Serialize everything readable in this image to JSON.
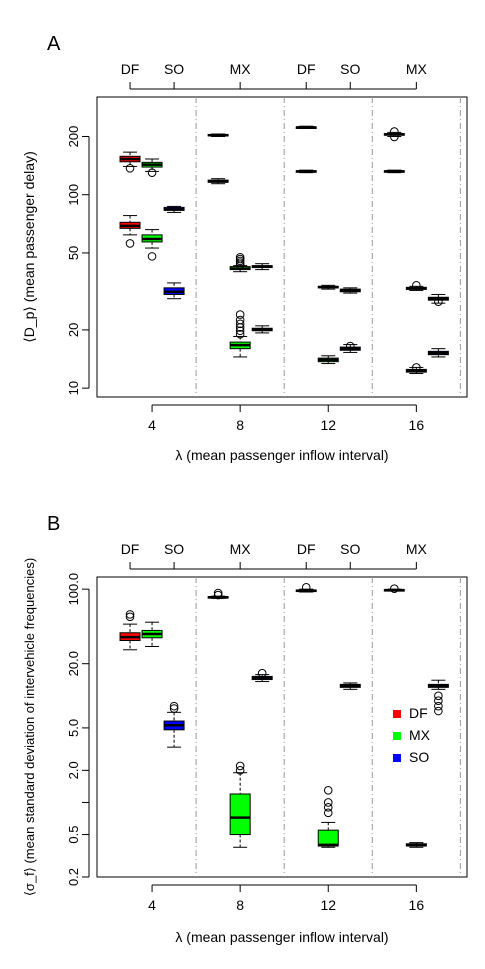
{
  "chart_data": [
    {
      "type": "box",
      "panel_label": "A",
      "ylabel": "⟨D_p⟩ (mean passenger delay)",
      "xlabel": "λ (mean passenger inflow interval)",
      "y_scale": "log",
      "ylim": [
        9,
        320
      ],
      "y_ticks": [
        10,
        20,
        50,
        100,
        200
      ],
      "y_tick_labels": [
        "10",
        "20",
        "50",
        "100",
        "200"
      ],
      "x_ticks": [
        4,
        8,
        12,
        16
      ],
      "x_tick_labels": [
        "4",
        "8",
        "12",
        "16"
      ],
      "top_labels": [
        "DF",
        "SO",
        "MX",
        "DF",
        "SO",
        "MX"
      ],
      "separators": [
        6,
        10,
        14,
        18
      ],
      "boxes": [
        {
          "x": 3.0,
          "series": "DF",
          "fill": "#ff0000",
          "whislo": 140,
          "q1": 148,
          "med": 153,
          "q3": 158,
          "whishi": 166,
          "outliers": [
            137
          ]
        },
        {
          "x": 3.0,
          "series": "DF",
          "fill": "#ff0000",
          "whislo": 62,
          "q1": 67,
          "med": 69,
          "q3": 72,
          "whishi": 78,
          "outliers": [
            56
          ]
        },
        {
          "x": 4.0,
          "series": "MX",
          "fill": "#00ff00",
          "whislo": 132,
          "q1": 139,
          "med": 143,
          "q3": 147,
          "whishi": 153,
          "outliers": [
            130
          ]
        },
        {
          "x": 4.0,
          "series": "MX",
          "fill": "#00ff00",
          "whislo": 53,
          "q1": 57,
          "med": 59,
          "q3": 62,
          "whishi": 66,
          "outliers": [
            48
          ]
        },
        {
          "x": 5.0,
          "series": "SO",
          "fill": "#0000ff",
          "whislo": 81,
          "q1": 83,
          "med": 84,
          "q3": 86,
          "whishi": 87,
          "outliers": []
        },
        {
          "x": 5.0,
          "series": "SO",
          "fill": "#0000ff",
          "whislo": 29,
          "q1": 30.5,
          "med": 31.5,
          "q3": 33,
          "whishi": 35,
          "outliers": []
        },
        {
          "x": 7.0,
          "series": "DF",
          "fill": "#ff0000",
          "whislo": 200,
          "q1": 202,
          "med": 203,
          "q3": 205,
          "whishi": 206,
          "outliers": []
        },
        {
          "x": 7.0,
          "series": "DF",
          "fill": "#ff0000",
          "whislo": 114,
          "q1": 116,
          "med": 117,
          "q3": 119,
          "whishi": 121,
          "outliers": []
        },
        {
          "x": 8.0,
          "series": "MX",
          "fill": "#00ff00",
          "whislo": 40,
          "q1": 41,
          "med": 41.5,
          "q3": 42.5,
          "whishi": 43,
          "outliers": [
            43.5,
            44.5,
            45.5,
            46.5,
            47.5
          ]
        },
        {
          "x": 8.0,
          "series": "MX",
          "fill": "#00ff00",
          "whislo": 14.5,
          "q1": 16,
          "med": 16.7,
          "q3": 17.3,
          "whishi": 18.5,
          "outliers": [
            19,
            19.8,
            20.6,
            21.5,
            22.5,
            24
          ]
        },
        {
          "x": 9.0,
          "series": "SO",
          "fill": "#0000ff",
          "whislo": 41,
          "q1": 42,
          "med": 42.5,
          "q3": 43,
          "whishi": 44,
          "outliers": []
        },
        {
          "x": 9.0,
          "series": "SO",
          "fill": "#0000ff",
          "whislo": 19.3,
          "q1": 19.8,
          "med": 20.1,
          "q3": 20.4,
          "whishi": 21,
          "outliers": []
        },
        {
          "x": 11.0,
          "series": "DF",
          "fill": "#ff0000",
          "whislo": 220,
          "q1": 222,
          "med": 223,
          "q3": 224,
          "whishi": 226,
          "outliers": []
        },
        {
          "x": 11.0,
          "series": "DF",
          "fill": "#ff0000",
          "whislo": 130,
          "q1": 131,
          "med": 132,
          "q3": 133,
          "whishi": 134,
          "outliers": []
        },
        {
          "x": 12.0,
          "series": "MX",
          "fill": "#00ff00",
          "whislo": 32.5,
          "q1": 33,
          "med": 33.3,
          "q3": 33.6,
          "whishi": 34,
          "outliers": []
        },
        {
          "x": 12.0,
          "series": "MX",
          "fill": "#00ff00",
          "whislo": 13.4,
          "q1": 13.7,
          "med": 14,
          "q3": 14.3,
          "whishi": 14.7,
          "outliers": []
        },
        {
          "x": 13.0,
          "series": "SO",
          "fill": "#0000ff",
          "whislo": 31,
          "q1": 31.5,
          "med": 32,
          "q3": 32.5,
          "whishi": 33,
          "outliers": []
        },
        {
          "x": 13.0,
          "series": "SO",
          "fill": "#0000ff",
          "whislo": 15.3,
          "q1": 15.7,
          "med": 16,
          "q3": 16.3,
          "whishi": 16.8,
          "outliers": [
            16.5
          ]
        },
        {
          "x": 15.0,
          "series": "DF",
          "fill": "#ff0000",
          "whislo": 200,
          "q1": 203,
          "med": 205,
          "q3": 207,
          "whishi": 210,
          "outliers": [
            199,
            212
          ]
        },
        {
          "x": 15.0,
          "series": "DF",
          "fill": "#ff0000",
          "whislo": 130,
          "q1": 131,
          "med": 132,
          "q3": 133,
          "whishi": 134,
          "outliers": []
        },
        {
          "x": 16.0,
          "series": "MX",
          "fill": "#00ff00",
          "whislo": 32,
          "q1": 32.4,
          "med": 32.8,
          "q3": 33.2,
          "whishi": 33.6,
          "outliers": [
            34
          ]
        },
        {
          "x": 16.0,
          "series": "MX",
          "fill": "#00ff00",
          "whislo": 11.9,
          "q1": 12.1,
          "med": 12.3,
          "q3": 12.5,
          "whishi": 12.8,
          "outliers": [
            12.8
          ]
        },
        {
          "x": 17.0,
          "series": "SO",
          "fill": "#0000ff",
          "whislo": 27.5,
          "q1": 28.5,
          "med": 29,
          "q3": 29.5,
          "whishi": 30.5,
          "outliers": [
            28
          ]
        },
        {
          "x": 17.0,
          "series": "SO",
          "fill": "#0000ff",
          "whislo": 14.5,
          "q1": 14.9,
          "med": 15.2,
          "q3": 15.5,
          "whishi": 16,
          "outliers": []
        }
      ]
    },
    {
      "type": "box",
      "panel_label": "B",
      "ylabel": "⟨σ_f⟩ (mean standard deviation of intervehicle frequencies)",
      "xlabel": "λ (mean passenger inflow interval)",
      "y_scale": "log",
      "ylim": [
        0.2,
        130
      ],
      "y_ticks": [
        0.2,
        0.5,
        1.0,
        2.0,
        5.0,
        20.0,
        100.0
      ],
      "y_tick_labels": [
        "0.2",
        "0.5",
        "",
        "2.0",
        "5.0",
        "20.0",
        "100.0"
      ],
      "x_ticks": [
        4,
        8,
        12,
        16
      ],
      "x_tick_labels": [
        "4",
        "8",
        "12",
        "16"
      ],
      "top_labels": [
        "DF",
        "SO",
        "MX",
        "DF",
        "SO",
        "MX"
      ],
      "separators": [
        6,
        10,
        14,
        18
      ],
      "legend": {
        "position": "right",
        "entries": [
          {
            "label": "DF",
            "color": "#ff0000"
          },
          {
            "label": "MX",
            "color": "#00ff00"
          },
          {
            "label": "SO",
            "color": "#0000ff"
          }
        ]
      },
      "boxes": [
        {
          "x": 3.0,
          "series": "DF",
          "fill": "#ff0000",
          "whislo": 27,
          "q1": 33,
          "med": 35.5,
          "q3": 39,
          "whishi": 47,
          "outliers": [
            55,
            58
          ]
        },
        {
          "x": 4.0,
          "series": "MX",
          "fill": "#00ff00",
          "whislo": 29,
          "q1": 35,
          "med": 38,
          "q3": 41,
          "whishi": 49,
          "outliers": []
        },
        {
          "x": 5.0,
          "series": "SO",
          "fill": "#0000ff",
          "whislo": 3.3,
          "q1": 4.8,
          "med": 5.3,
          "q3": 5.8,
          "whishi": 7.0,
          "outliers": [
            7.6,
            8.0
          ]
        },
        {
          "x": 7.0,
          "series": "DF",
          "fill": "#ff0000",
          "whislo": 82,
          "q1": 83,
          "med": 84,
          "q3": 85,
          "whishi": 86,
          "outliers": [
            88,
            92
          ]
        },
        {
          "x": 8.0,
          "series": "MX",
          "fill": "#00ff00",
          "whislo": 0.38,
          "q1": 0.5,
          "med": 0.72,
          "q3": 1.2,
          "whishi": 1.9,
          "outliers": [
            2.0,
            2.2
          ]
        },
        {
          "x": 9.0,
          "series": "SO",
          "fill": "#0000ff",
          "whislo": 13.6,
          "q1": 14.2,
          "med": 14.7,
          "q3": 15.2,
          "whishi": 15.8,
          "outliers": [
            16.3
          ]
        },
        {
          "x": 11.0,
          "series": "DF",
          "fill": "#ff0000",
          "whislo": 94,
          "q1": 96,
          "med": 97,
          "q3": 98,
          "whishi": 100,
          "outliers": [
            104
          ]
        },
        {
          "x": 12.0,
          "series": "MX",
          "fill": "#00ff00",
          "whislo": 0.38,
          "q1": 0.39,
          "med": 0.4,
          "q3": 0.55,
          "whishi": 0.65,
          "outliers": [
            0.8,
            0.9,
            1.0,
            1.3
          ]
        },
        {
          "x": 13.0,
          "series": "SO",
          "fill": "#0000ff",
          "whislo": 11.5,
          "q1": 12,
          "med": 12.4,
          "q3": 12.8,
          "whishi": 13.2,
          "outliers": []
        },
        {
          "x": 15.0,
          "series": "DF",
          "fill": "#ff0000",
          "whislo": 96,
          "q1": 97,
          "med": 98,
          "q3": 99,
          "whishi": 100,
          "outliers": [
            101
          ]
        },
        {
          "x": 16.0,
          "series": "MX",
          "fill": "#00ff00",
          "whislo": 0.38,
          "q1": 0.39,
          "med": 0.4,
          "q3": 0.41,
          "whishi": 0.42,
          "outliers": []
        },
        {
          "x": 17.0,
          "series": "SO",
          "fill": "#0000ff",
          "whislo": 11.5,
          "q1": 12,
          "med": 12.4,
          "q3": 12.8,
          "whishi": 14,
          "outliers": [
            7.2,
            8.0,
            9.0,
            10
          ]
        }
      ]
    }
  ]
}
